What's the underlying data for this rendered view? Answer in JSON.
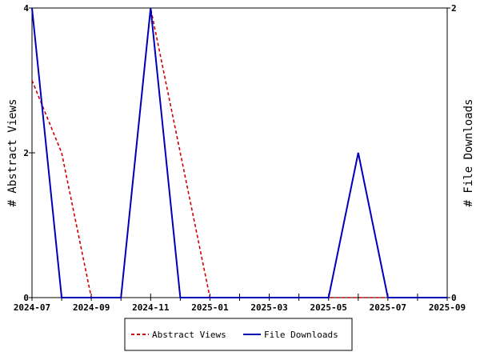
{
  "chart_data": {
    "type": "line",
    "x_dates": [
      "2024-07",
      "2024-08",
      "2024-09",
      "2024-10",
      "2024-11",
      "2024-12",
      "2025-01",
      "2025-02",
      "2025-03",
      "2025-04",
      "2025-05",
      "2025-06",
      "2025-07",
      "2025-08",
      "2025-09"
    ],
    "x_tick_labels": [
      "2024-07",
      "2024-09",
      "2024-11",
      "2025-01",
      "2025-03",
      "2025-05",
      "2025-07",
      "2025-09"
    ],
    "y_left": {
      "label": "# Abstract Views",
      "ylim": [
        0,
        4
      ],
      "ticks": [
        "0",
        "2",
        "4"
      ]
    },
    "y_right": {
      "label": "# File Downloads",
      "ylim": [
        0,
        2
      ],
      "ticks": [
        "0",
        "2"
      ]
    },
    "series": [
      {
        "name": "Abstract Views",
        "axis": "left",
        "color": "#cc0000",
        "style": "dashed",
        "values": [
          3,
          2,
          0,
          0,
          4,
          2,
          0,
          0,
          0,
          0,
          0,
          0,
          0,
          0,
          0
        ]
      },
      {
        "name": "File Downloads",
        "axis": "right",
        "color": "#0000bb",
        "style": "solid",
        "values": [
          2,
          0,
          0,
          0,
          2,
          0,
          0,
          0,
          0,
          0,
          0,
          1,
          0,
          0,
          0
        ]
      }
    ],
    "legend": {
      "placement": "bottom-center"
    },
    "grid": false
  }
}
